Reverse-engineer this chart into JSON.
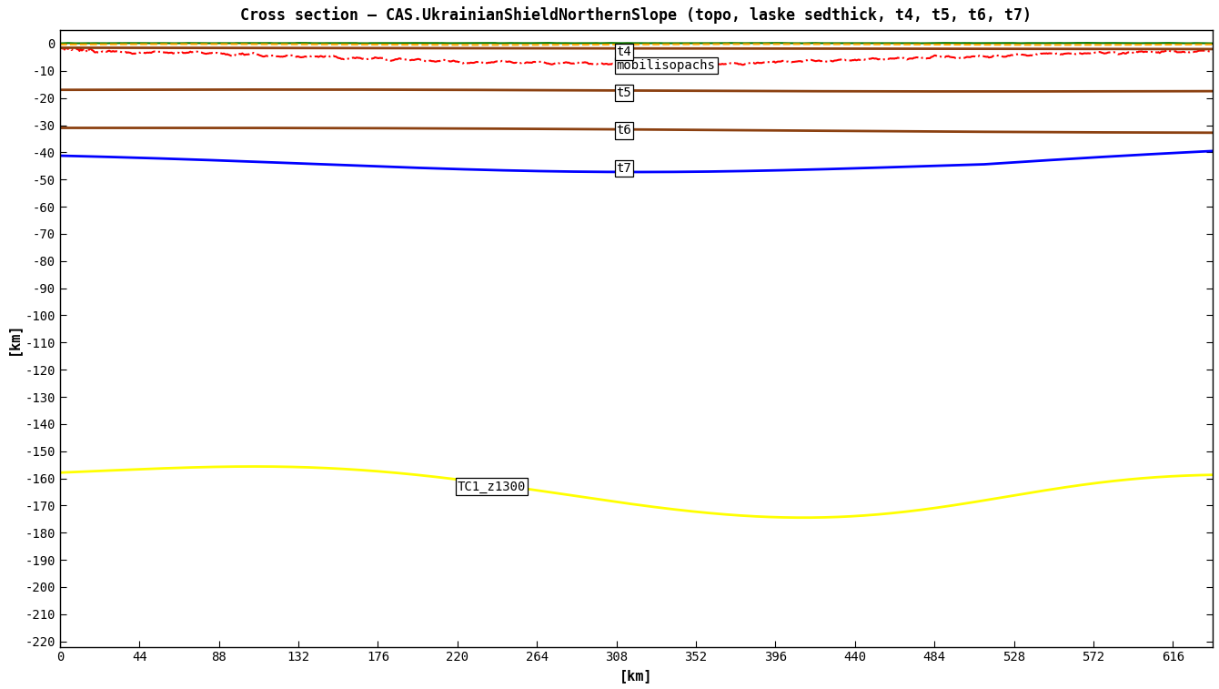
{
  "title": "Cross section – CAS.UkrainianShieldNorthernSlope (topo, laske sedthick, t4, t5, t6, t7)",
  "xlabel": "[km]",
  "ylabel": "[km]",
  "xlim": [
    0,
    638
  ],
  "ylim": [
    -222,
    5
  ],
  "xtick_step": 44,
  "ytick_step": 10,
  "bg_color": "#ffffff",
  "lines": {
    "topo": {
      "color": "#007700",
      "lw": 1.5,
      "ls": "-"
    },
    "laske": {
      "color": "#FFA500",
      "lw": 1.5,
      "ls": "--"
    },
    "mobilisopachs": {
      "color": "#FF0000",
      "lw": 1.5,
      "ls": "-.",
      "ann": "mobilisopachs",
      "ann_x": 308,
      "ann_y": -8
    },
    "t4": {
      "color": "#8B4010",
      "lw": 2.0,
      "ls": "-",
      "ann": "t4",
      "ann_x": 308,
      "ann_y": -3
    },
    "t5": {
      "color": "#8B4010",
      "lw": 2.0,
      "ls": "-",
      "ann": "t5",
      "ann_x": 308,
      "ann_y": -18
    },
    "t6": {
      "color": "#8B4010",
      "lw": 2.0,
      "ls": "-",
      "ann": "t6",
      "ann_x": 308,
      "ann_y": -32
    },
    "t7": {
      "color": "#0000FF",
      "lw": 2.0,
      "ls": "-",
      "ann": "t7",
      "ann_x": 308,
      "ann_y": -46
    },
    "TC1_z1300": {
      "color": "#FFFF00",
      "lw": 2.0,
      "ls": "-",
      "ann": "TC1_z1300",
      "ann_x": 220,
      "ann_y": -163
    }
  },
  "font_size": 11,
  "title_font_size": 12
}
